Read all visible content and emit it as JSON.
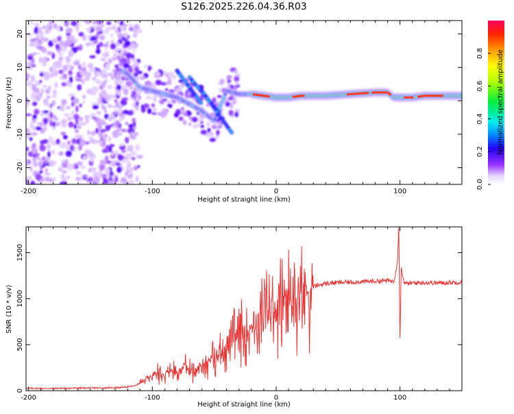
{
  "title": "S126.2025.226.04.36.R03",
  "chart_data": [
    {
      "type": "heatmap",
      "title": "S126.2025.226.04.36.R03",
      "xlabel": "Height of straight line (km)",
      "ylabel": "Frequency (Hz)",
      "xlim": [
        -202,
        150
      ],
      "ylim": [
        -25,
        24
      ],
      "xticks": [
        -200,
        -100,
        0,
        100
      ],
      "yticks": [
        -20,
        -10,
        0,
        10,
        20
      ],
      "grid": false,
      "ridge": {
        "x": [
          -125,
          -120,
          -115,
          -110,
          -100,
          -90,
          -80,
          -70,
          -60,
          -50,
          -40,
          -30,
          -20,
          -10,
          0,
          10,
          20,
          40,
          60,
          80,
          90,
          95,
          100,
          110,
          120,
          130,
          150
        ],
        "y": [
          9,
          8,
          6,
          4,
          3,
          2,
          1,
          -1,
          -3,
          -6,
          3,
          2,
          2,
          1.5,
          1,
          1,
          1.5,
          1.5,
          2,
          2.5,
          2.5,
          1,
          1,
          1,
          1.5,
          1.5,
          1.5
        ]
      },
      "colorbar": {
        "label": "Normalized spectral amplitude",
        "ticks": [
          "0.0",
          "0.2",
          "0.4",
          "0.6",
          "0.8"
        ],
        "range": [
          0,
          1
        ]
      }
    },
    {
      "type": "line",
      "xlabel": "Height of straight line (km)",
      "ylabel": "SNR (10 * v/v)",
      "xlim": [
        -202,
        150
      ],
      "ylim": [
        0,
        1780
      ],
      "xticks": [
        -200,
        -100,
        0,
        100
      ],
      "yticks": [
        0,
        500,
        1000,
        1500
      ],
      "grid": false,
      "color": "#ee3333",
      "series": [
        {
          "name": "SNR",
          "x": [
            -202,
            -180,
            -160,
            -140,
            -125,
            -115,
            -110,
            -105,
            -100,
            -95,
            -90,
            -85,
            -80,
            -75,
            -70,
            -65,
            -60,
            -55,
            -50,
            -45,
            -40,
            -35,
            -30,
            -25,
            -20,
            -15,
            -10,
            -5,
            0,
            5,
            10,
            15,
            20,
            25,
            30,
            35,
            40,
            50,
            60,
            70,
            80,
            90,
            95,
            98,
            99,
            100,
            101,
            102,
            104,
            110,
            120,
            130,
            140,
            150
          ],
          "y": [
            25,
            25,
            28,
            30,
            35,
            50,
            80,
            120,
            160,
            210,
            190,
            230,
            200,
            260,
            240,
            200,
            280,
            320,
            360,
            420,
            480,
            540,
            600,
            650,
            700,
            760,
            820,
            880,
            900,
            950,
            980,
            1020,
            1060,
            1100,
            1130,
            1150,
            1165,
            1175,
            1180,
            1185,
            1190,
            1195,
            1190,
            1400,
            1780,
            530,
            1350,
            1250,
            1160,
            1170,
            1175,
            1170,
            1175,
            1180
          ]
        }
      ]
    }
  ]
}
